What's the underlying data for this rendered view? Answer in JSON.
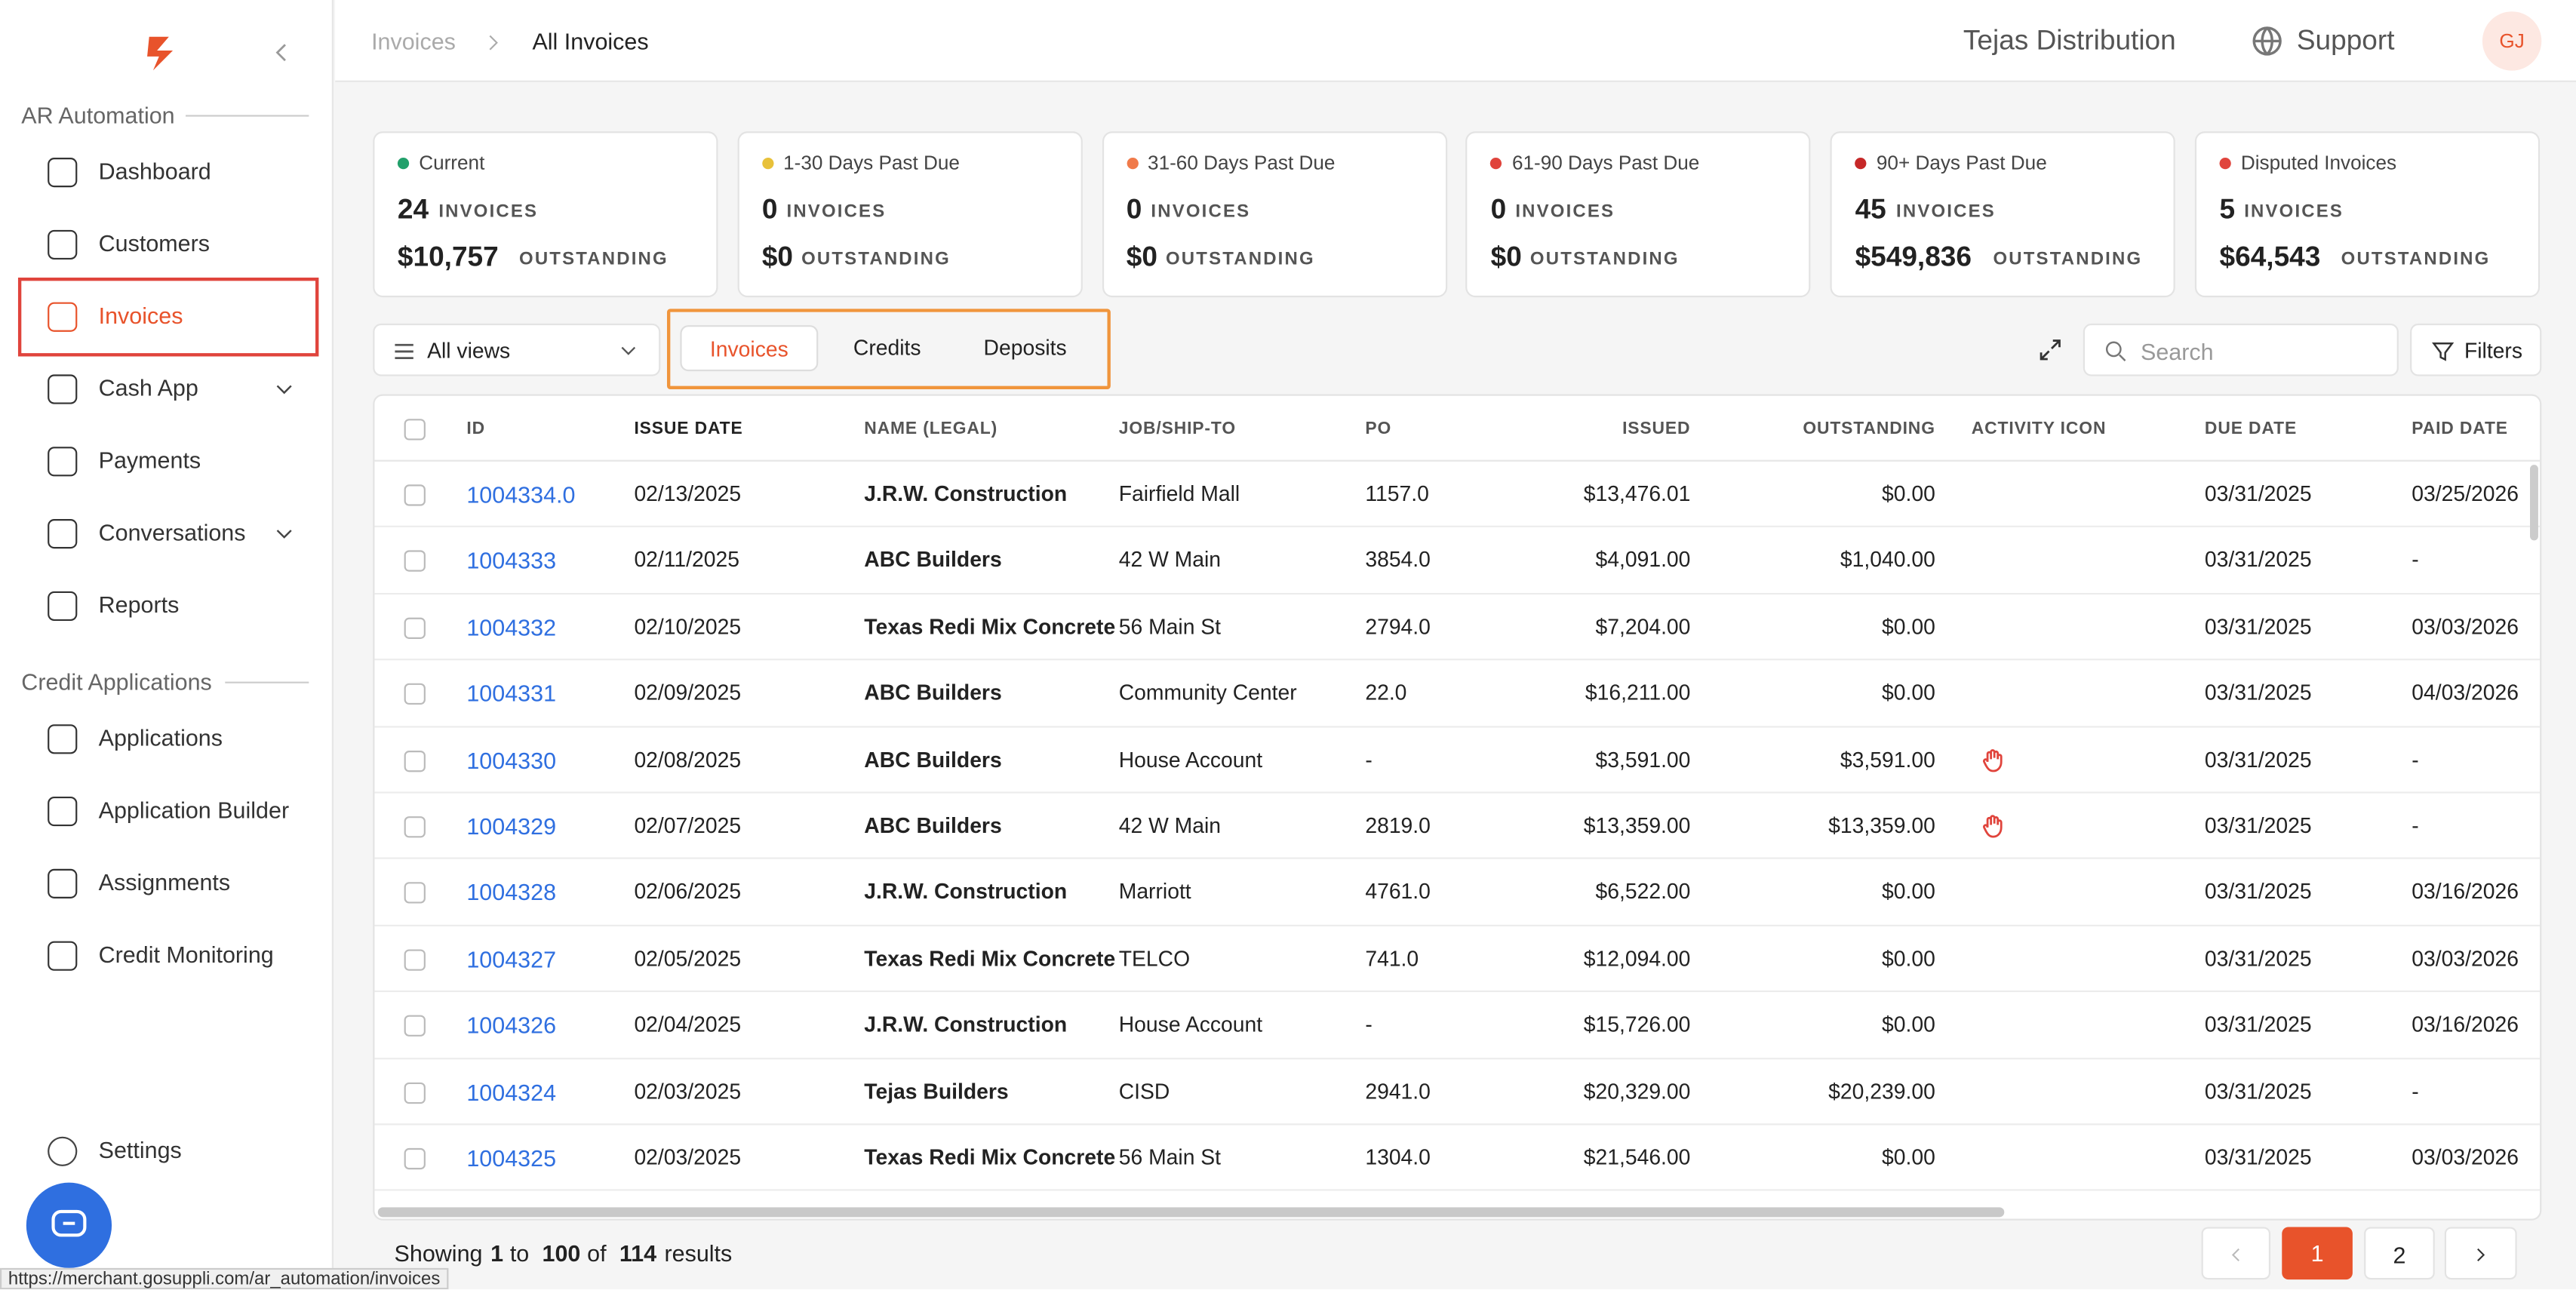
{
  "sidebar": {
    "sections": [
      {
        "title": "AR Automation",
        "items": [
          {
            "label": "Dashboard"
          },
          {
            "label": "Customers"
          },
          {
            "label": "Invoices",
            "active": true
          },
          {
            "label": "Cash App",
            "expandable": true
          },
          {
            "label": "Payments"
          },
          {
            "label": "Conversations",
            "expandable": true
          },
          {
            "label": "Reports"
          }
        ]
      },
      {
        "title": "Credit Applications",
        "items": [
          {
            "label": "Applications"
          },
          {
            "label": "Application Builder"
          },
          {
            "label": "Assignments"
          },
          {
            "label": "Credit Monitoring"
          }
        ]
      }
    ],
    "footer_item": "Settings"
  },
  "header": {
    "breadcrumb": [
      "Invoices",
      "All Invoices"
    ],
    "company": "Tejas Distribution",
    "support": "Support",
    "avatar": "GJ"
  },
  "cards": [
    {
      "label": "Current",
      "dot": "#22a06b",
      "count": "24",
      "count_unit": "INVOICES",
      "amount": "$10,757",
      "amount_unit": "OUTSTANDING"
    },
    {
      "label": "1-30 Days Past Due",
      "dot": "#e8c13a",
      "count": "0",
      "count_unit": "INVOICES",
      "amount": "$0",
      "amount_unit": "OUTSTANDING"
    },
    {
      "label": "31-60 Days Past Due",
      "dot": "#f07a4a",
      "count": "0",
      "count_unit": "INVOICES",
      "amount": "$0",
      "amount_unit": "OUTSTANDING"
    },
    {
      "label": "61-90 Days Past Due",
      "dot": "#e0443c",
      "count": "0",
      "count_unit": "INVOICES",
      "amount": "$0",
      "amount_unit": "OUTSTANDING"
    },
    {
      "label": "90+ Days Past Due",
      "dot": "#c62828",
      "count": "45",
      "count_unit": "INVOICES",
      "amount": "$549,836",
      "amount_unit": "OUTSTANDING"
    },
    {
      "label": "Disputed Invoices",
      "dot": "#e0443c",
      "count": "5",
      "count_unit": "INVOICES",
      "amount": "$64,543",
      "amount_unit": "OUTSTANDING"
    }
  ],
  "toolbar": {
    "view": "All views",
    "tabs": [
      "Invoices",
      "Credits",
      "Deposits"
    ],
    "active_tab": 0,
    "search_placeholder": "Search",
    "filters": "Filters"
  },
  "table": {
    "columns": [
      "ID",
      "ISSUE DATE",
      "NAME (LEGAL)",
      "JOB/SHIP-TO",
      "PO",
      "ISSUED",
      "OUTSTANDING",
      "ACTIVITY ICON",
      "DUE DATE",
      "PAID DATE"
    ],
    "rows": [
      {
        "cells": [
          "1004334.0",
          "02/13/2025",
          "J.R.W. Construction",
          "Fairfield Mall",
          "1157.0",
          "$13,476.01",
          "$0.00",
          "03/31/2025",
          "03/25/2026"
        ]
      },
      {
        "cells": [
          "1004333",
          "02/11/2025",
          "ABC Builders",
          "42 W Main",
          "3854.0",
          "$4,091.00",
          "$1,040.00",
          "03/31/2025",
          "-"
        ]
      },
      {
        "cells": [
          "1004332",
          "02/10/2025",
          "Texas Redi Mix Concrete",
          "56 Main St",
          "2794.0",
          "$7,204.00",
          "$0.00",
          "03/31/2025",
          "03/03/2026"
        ]
      },
      {
        "cells": [
          "1004331",
          "02/09/2025",
          "ABC Builders",
          "Community Center",
          "22.0",
          "$16,211.00",
          "$0.00",
          "03/31/2025",
          "04/03/2026"
        ]
      },
      {
        "cells": [
          "1004330",
          "02/08/2025",
          "ABC Builders",
          "House Account",
          "-",
          "$3,591.00",
          "$3,591.00",
          "03/31/2025",
          "-"
        ],
        "activity_icon": "hand"
      },
      {
        "cells": [
          "1004329",
          "02/07/2025",
          "ABC Builders",
          "42 W Main",
          "2819.0",
          "$13,359.00",
          "$13,359.00",
          "03/31/2025",
          "-"
        ],
        "activity_icon": "hand"
      },
      {
        "cells": [
          "1004328",
          "02/06/2025",
          "J.R.W. Construction",
          "Marriott",
          "4761.0",
          "$6,522.00",
          "$0.00",
          "03/31/2025",
          "03/16/2026"
        ]
      },
      {
        "cells": [
          "1004327",
          "02/05/2025",
          "Texas Redi Mix Concrete",
          "TELCO",
          "741.0",
          "$12,094.00",
          "$0.00",
          "03/31/2025",
          "03/03/2026"
        ]
      },
      {
        "cells": [
          "1004326",
          "02/04/2025",
          "J.R.W. Construction",
          "House Account",
          "-",
          "$15,726.00",
          "$0.00",
          "03/31/2025",
          "03/16/2026"
        ]
      },
      {
        "cells": [
          "1004324",
          "02/03/2025",
          "Tejas Builders",
          "CISD",
          "2941.0",
          "$20,329.00",
          "$20,239.00",
          "03/31/2025",
          "-"
        ]
      },
      {
        "cells": [
          "1004325",
          "02/03/2025",
          "Texas Redi Mix Concrete",
          "56 Main St",
          "1304.0",
          "$21,546.00",
          "$0.00",
          "03/31/2025",
          "03/03/2026"
        ]
      }
    ]
  },
  "footer": {
    "showing": "Showing",
    "from": "1",
    "to_word": "to",
    "to": "100",
    "of_word": "of",
    "total": "114",
    "results": "results",
    "pages": [
      "1",
      "2"
    ],
    "current_page": 0
  },
  "status_url": "https://merchant.gosuppli.com/ar_automation/invoices"
}
